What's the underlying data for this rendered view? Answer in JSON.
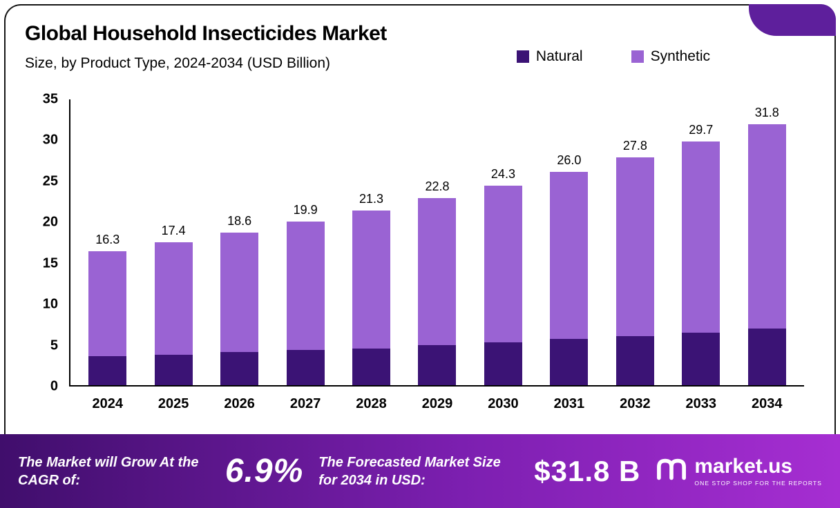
{
  "header": {
    "title": "Global Household Insecticides Market",
    "subtitle": "Size, by Product Type, 2024-2034 (USD Billion)"
  },
  "chart_data": {
    "type": "bar",
    "stacked": true,
    "title": "Global Household Insecticides Market Size, by Product Type, 2024-2034 (USD Billion)",
    "categories": [
      "2024",
      "2025",
      "2026",
      "2027",
      "2028",
      "2029",
      "2030",
      "2031",
      "2032",
      "2033",
      "2034"
    ],
    "series": [
      {
        "name": "Natural",
        "color": "#3b1375",
        "values": [
          3.5,
          3.7,
          4.0,
          4.3,
          4.5,
          4.9,
          5.2,
          5.6,
          6.0,
          6.4,
          6.9
        ]
      },
      {
        "name": "Synthetic",
        "color": "#9a63d3",
        "values": [
          12.8,
          13.7,
          14.6,
          15.6,
          16.8,
          17.9,
          19.1,
          20.4,
          21.8,
          23.3,
          24.9
        ]
      }
    ],
    "totals": [
      "16.3",
      "17.4",
      "18.6",
      "19.9",
      "21.3",
      "22.8",
      "24.3",
      "26.0",
      "27.8",
      "29.7",
      "31.8"
    ],
    "ylim": [
      0,
      35
    ],
    "yticks": [
      0,
      5,
      10,
      15,
      20,
      25,
      30,
      35
    ],
    "grid": false,
    "legend_position": "top-right",
    "xlabel": "",
    "ylabel": ""
  },
  "footer": {
    "cagr_label": "The Market will Grow At the CAGR of:",
    "cagr_value": "6.9%",
    "forecast_label": "The Forecasted Market Size for 2034 in USD:",
    "forecast_value": "$31.8 B",
    "brand_name": "market.us",
    "brand_tagline": "ONE STOP SHOP FOR THE REPORTS"
  },
  "colors": {
    "natural": "#3b1375",
    "synthetic": "#9a63d3",
    "corner": "#5e1f9c",
    "footer_gradient_left": "#400e6c",
    "footer_gradient_mid": "#7c1fb0",
    "footer_gradient_right": "#a62ed2",
    "axis": "#000000"
  }
}
